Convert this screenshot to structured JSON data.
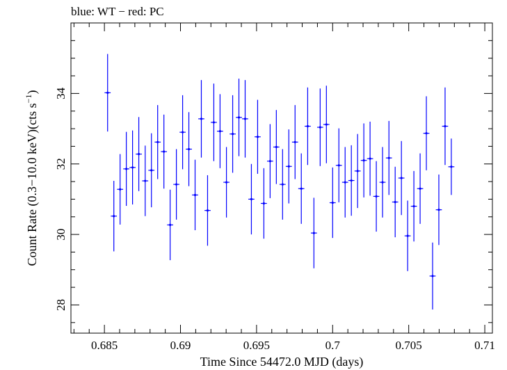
{
  "chart_data": {
    "type": "scatter",
    "title": "blue: WT − red: PC",
    "xlabel": "Time Since 54472.0 MJD (days)",
    "ylabel_main": "Count Rate (0.3−10.0 keV)(cts s",
    "ylabel_sup": "−1",
    "ylabel_tail": ")",
    "xlim": [
      0.6828,
      0.7105
    ],
    "ylim": [
      27.2,
      36.0
    ],
    "xticks": [
      0.685,
      0.69,
      0.695,
      0.7,
      0.705,
      0.71
    ],
    "xtick_labels": [
      "0.685",
      "0.69",
      "0.695",
      "0.7",
      "0.705",
      "0.71"
    ],
    "yticks": [
      28,
      30,
      32,
      34
    ],
    "ytick_labels": [
      "28",
      "30",
      "32",
      "34"
    ],
    "grid": false,
    "series": [
      {
        "color": "#0000ff",
        "x": [
          0.68521,
          0.68562,
          0.68603,
          0.68644,
          0.68685,
          0.68726,
          0.68768,
          0.68809,
          0.6885,
          0.68891,
          0.68932,
          0.68973,
          0.69014,
          0.69055,
          0.69096,
          0.69137,
          0.69178,
          0.69219,
          0.6926,
          0.69302,
          0.69343,
          0.69384,
          0.69425,
          0.69466,
          0.69507,
          0.69548,
          0.69589,
          0.6963,
          0.69671,
          0.69712,
          0.69753,
          0.69794,
          0.69836,
          0.69877,
          0.69918,
          0.69959,
          0.7,
          0.70041,
          0.70082,
          0.70123,
          0.70164,
          0.70205,
          0.70246,
          0.70287,
          0.70328,
          0.7037,
          0.70411,
          0.70452,
          0.70493,
          0.70534,
          0.70575,
          0.70616,
          0.70657,
          0.70698,
          0.70739,
          0.7078
        ],
        "y": [
          34.02,
          30.52,
          31.28,
          31.86,
          31.9,
          32.28,
          31.52,
          31.82,
          32.62,
          32.35,
          30.27,
          31.42,
          32.9,
          32.42,
          31.12,
          33.28,
          30.68,
          33.18,
          32.93,
          31.48,
          32.85,
          33.32,
          33.28,
          31.0,
          32.77,
          30.88,
          32.08,
          32.48,
          31.42,
          31.93,
          32.62,
          31.3,
          33.07,
          30.04,
          33.04,
          33.12,
          30.9,
          31.96,
          31.48,
          31.53,
          31.8,
          32.1,
          32.15,
          31.08,
          31.48,
          32.17,
          30.92,
          31.6,
          29.96,
          30.8,
          31.3,
          32.87,
          28.82,
          30.7,
          33.07,
          31.92
        ],
        "yerr": [
          1.1,
          1.0,
          1.0,
          1.05,
          1.05,
          1.05,
          1.0,
          1.05,
          1.05,
          1.05,
          1.0,
          1.0,
          1.05,
          1.05,
          1.0,
          1.1,
          1.0,
          1.1,
          1.05,
          1.0,
          1.1,
          1.1,
          1.1,
          1.0,
          1.05,
          1.0,
          1.05,
          1.05,
          1.0,
          1.05,
          1.05,
          1.0,
          1.1,
          1.0,
          1.1,
          1.1,
          1.0,
          1.05,
          1.0,
          1.0,
          1.05,
          1.05,
          1.05,
          1.0,
          1.0,
          1.05,
          1.0,
          1.05,
          1.0,
          1.0,
          1.0,
          1.05,
          0.95,
          1.0,
          1.1,
          0.8
        ],
        "xerr": 0.0002
      }
    ]
  }
}
